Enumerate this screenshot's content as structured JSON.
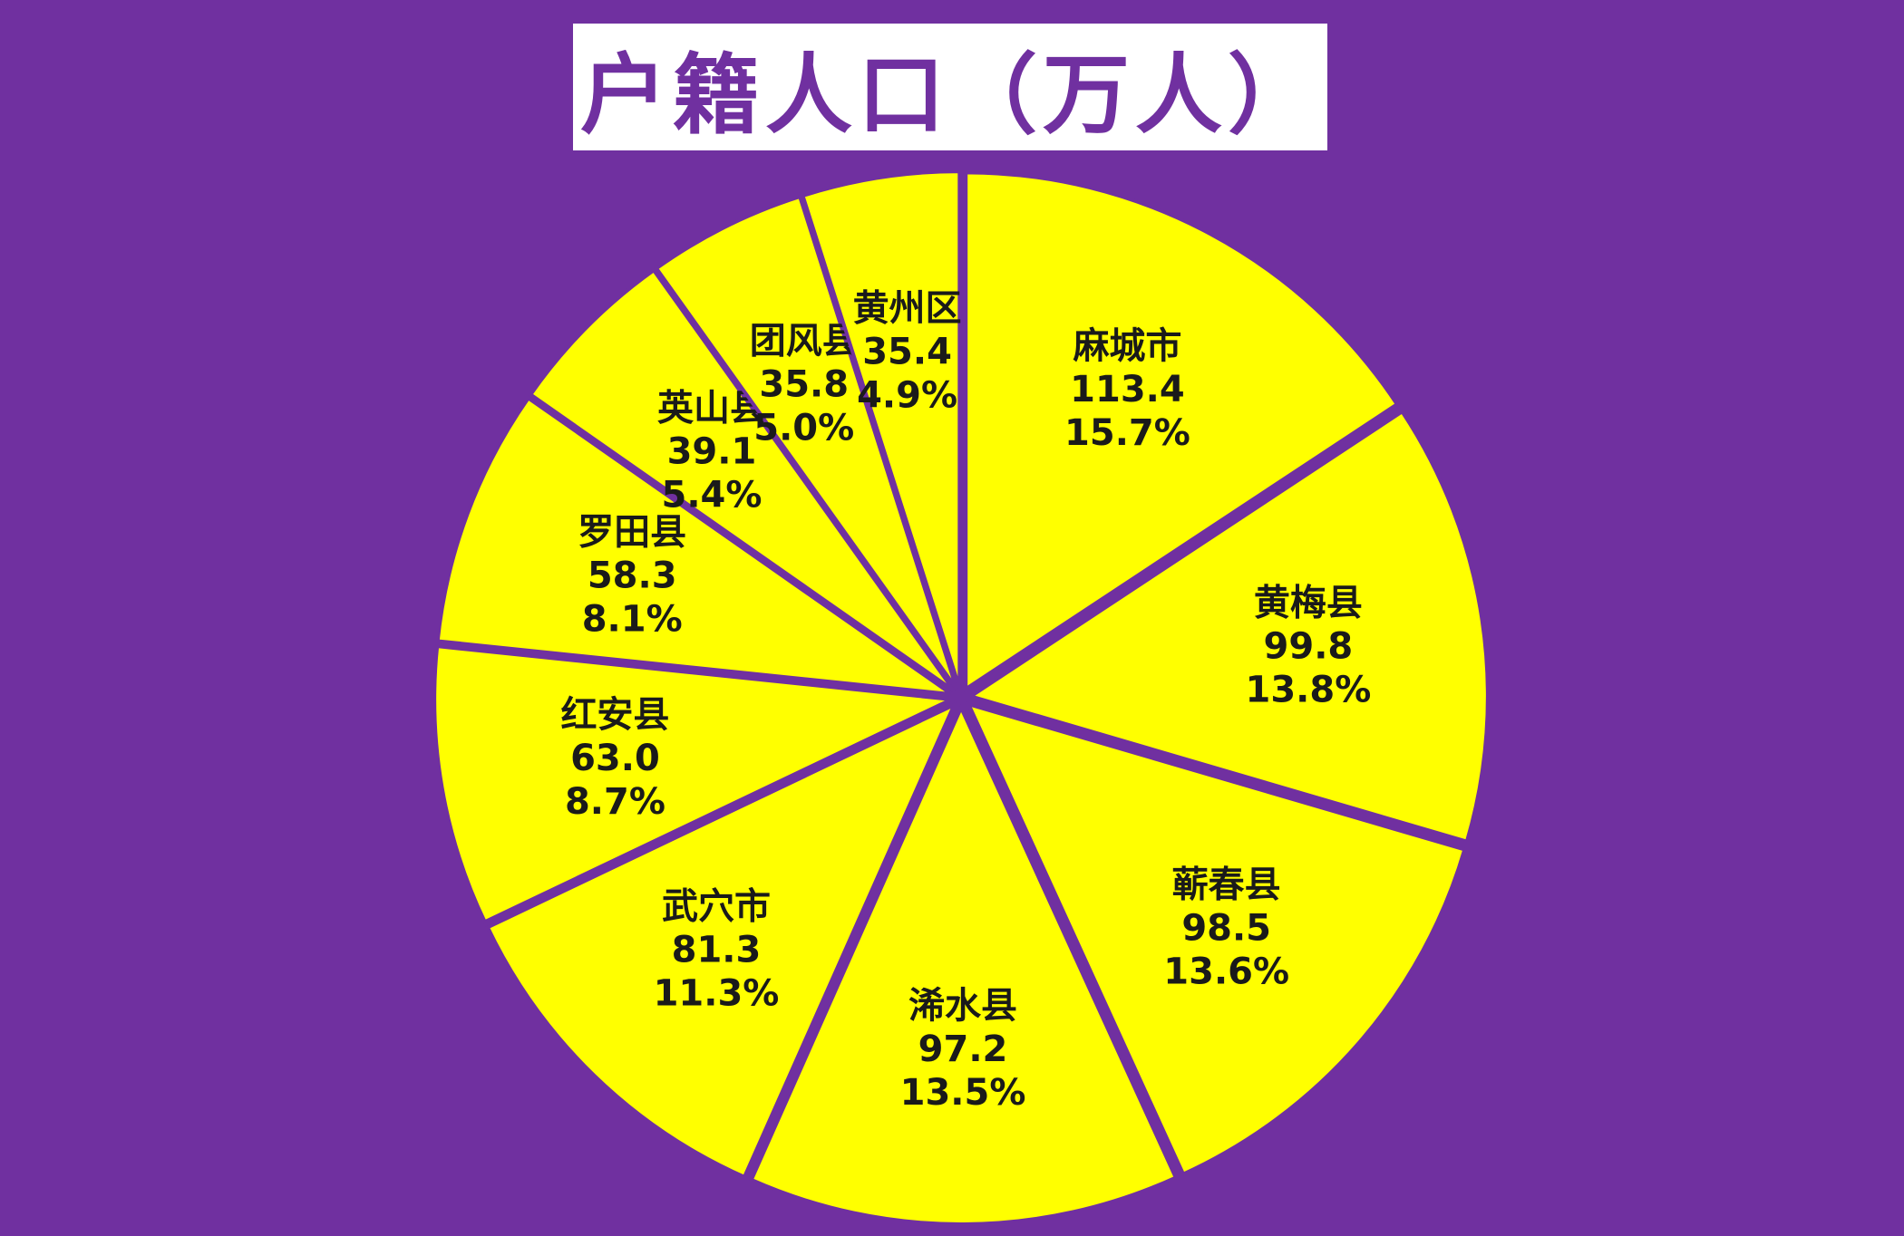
{
  "chart_data": {
    "type": "pie",
    "title": "户籍人口（万人）",
    "colors": {
      "background": "#7030a0",
      "slice": "#ffff00",
      "separator": "#7030a0",
      "title_text": "#7030a0",
      "title_box": "#ffffff",
      "label_text": "#1a1a1a"
    },
    "slices": [
      {
        "name": "麻城市",
        "value": "113.4",
        "percent": "15.7%"
      },
      {
        "name": "黄梅县",
        "value": "99.8",
        "percent": "13.8%"
      },
      {
        "name": "蕲春县",
        "value": "98.5",
        "percent": "13.6%"
      },
      {
        "name": "浠水县",
        "value": "97.2",
        "percent": "13.5%"
      },
      {
        "name": "武穴市",
        "value": "81.3",
        "percent": "11.3%"
      },
      {
        "name": "红安县",
        "value": "63.0",
        "percent": "8.7%"
      },
      {
        "name": "罗田县",
        "value": "58.3",
        "percent": "8.1%"
      },
      {
        "name": "英山县",
        "value": "39.1",
        "percent": "5.4%"
      },
      {
        "name": "团风县",
        "value": "35.8",
        "percent": "5.0%"
      },
      {
        "name": "黄州区",
        "value": "35.4",
        "percent": "4.9%"
      }
    ]
  }
}
